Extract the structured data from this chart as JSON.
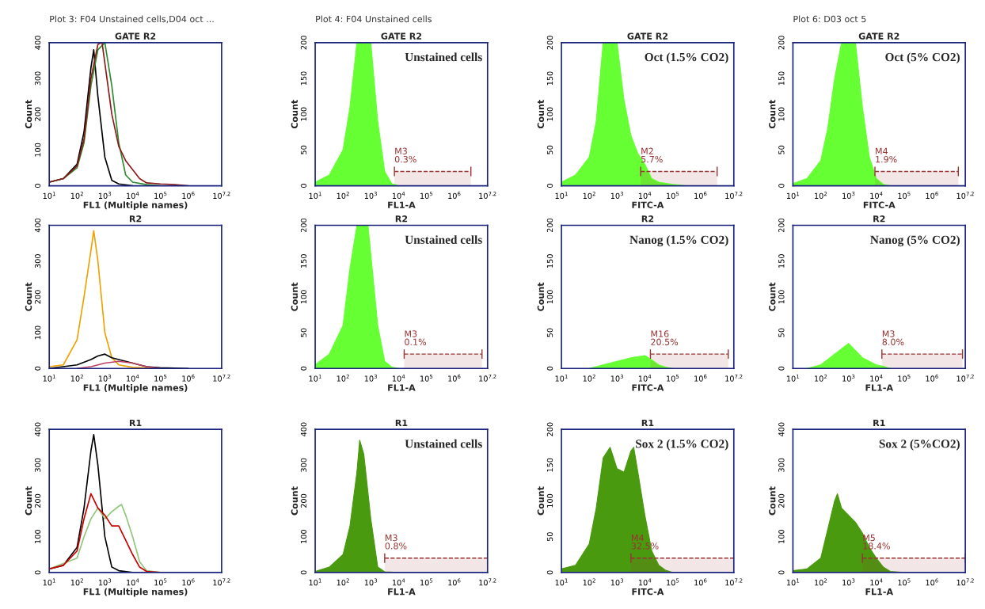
{
  "chart_data": [
    {
      "type": "line",
      "subtitle": "Plot 3: F04 Unstained cells,D04 oct ...",
      "title": "GATE R2",
      "xlabel": "FL1 (Multiple names)",
      "ylabel": "Count",
      "log": "x",
      "xlim": [
        10,
        15848932
      ],
      "ylim": [
        0,
        400
      ],
      "yticks": [
        0,
        100,
        200,
        300,
        400
      ],
      "xticks": [
        {
          "value": 10,
          "label": "10$^{1}$"
        },
        {
          "value": 100,
          "label": "10$^{2}$"
        },
        {
          "value": 1000,
          "label": "10$^{3}$"
        },
        {
          "value": 10000,
          "label": "10$^{4}$"
        },
        {
          "value": 100000,
          "label": "10$^{5}$"
        },
        {
          "value": 1000000,
          "label": "10$^{6}$"
        },
        {
          "value": 15848932,
          "label": "10$^{7.2}$"
        }
      ],
      "series": [
        {
          "color": "#000000",
          "x": [
            10,
            32,
            100,
            178,
            316,
            398,
            562,
            1000,
            1778,
            3162,
            10000
          ],
          "values": [
            10,
            20,
            60,
            150,
            330,
            380,
            250,
            80,
            15,
            5,
            0
          ]
        },
        {
          "color": "#2e8b2e",
          "x": [
            10,
            32,
            100,
            178,
            316,
            562,
            1000,
            1778,
            3162,
            5623,
            10000,
            31623,
            100000
          ],
          "values": [
            10,
            20,
            50,
            120,
            280,
            380,
            400,
            280,
            120,
            30,
            10,
            3,
            0
          ]
        },
        {
          "color": "#8b1a1a",
          "x": [
            10,
            32,
            100,
            178,
            316,
            562,
            794,
            1778,
            3162,
            5623,
            10000,
            17783,
            31623,
            100000,
            316228,
            1000000
          ],
          "values": [
            10,
            20,
            55,
            130,
            300,
            395,
            400,
            200,
            110,
            70,
            45,
            20,
            8,
            5,
            3,
            0
          ]
        }
      ]
    },
    {
      "type": "area",
      "subtitle": "Plot 4: F04 Unstained cells",
      "title": "GATE R2",
      "xlabel": "FL1-A",
      "ylabel": "Count",
      "log": "x",
      "xlim": [
        10,
        15848932
      ],
      "ylim": [
        0,
        200
      ],
      "yticks": [
        0,
        50,
        100,
        150,
        200
      ],
      "xticks": [
        {
          "value": 10,
          "label": "10$^{1}$"
        },
        {
          "value": 100,
          "label": "10$^{2}$"
        },
        {
          "value": 1000,
          "label": "10$^{3}$"
        },
        {
          "value": 10000,
          "label": "10$^{4}$"
        },
        {
          "value": 100000,
          "label": "10$^{5}$"
        },
        {
          "value": 1000000,
          "label": "10$^{6}$"
        },
        {
          "value": 15848932,
          "label": "10$^{7.2}$"
        }
      ],
      "annotations": [
        "Unstained cells"
      ],
      "bands": [
        {
          "axis": "x",
          "from": 7079,
          "to": 3981072,
          "label": "M3\n0.3%",
          "color": "#993333"
        }
      ],
      "series": [
        {
          "color": "#66ff33",
          "x": [
            10,
            32,
            100,
            178,
            316,
            1000,
            1778,
            3162,
            5623,
            10000
          ],
          "values": [
            5,
            15,
            50,
            110,
            200,
            200,
            90,
            20,
            3,
            0
          ]
        }
      ]
    },
    {
      "type": "area",
      "title": "GATE R2",
      "xlabel": "FITC-A",
      "ylabel": "Count",
      "log": "x",
      "xlim": [
        10,
        15848932
      ],
      "ylim": [
        0,
        200
      ],
      "yticks": [
        0,
        50,
        100,
        150,
        200
      ],
      "xticks": [
        {
          "value": 10,
          "label": "10$^{1}$"
        },
        {
          "value": 100,
          "label": "10$^{2}$"
        },
        {
          "value": 1000,
          "label": "10$^{3}$"
        },
        {
          "value": 10000,
          "label": "10$^{4}$"
        },
        {
          "value": 100000,
          "label": "10$^{5}$"
        },
        {
          "value": 1000000,
          "label": "10$^{6}$"
        },
        {
          "value": 15848932,
          "label": "10$^{7.2}$"
        }
      ],
      "annotations": [
        "Oct (1.5% CO2)"
      ],
      "bands": [
        {
          "axis": "x",
          "from": 7079,
          "to": 3981072,
          "label": "M2\n5.7%",
          "color": "#993333"
        }
      ],
      "series": [
        {
          "color": "#66ff33",
          "x": [
            10,
            32,
            100,
            178,
            316,
            1000,
            1778,
            3162,
            5623,
            10000,
            17783,
            31623,
            100000,
            316228
          ],
          "values": [
            5,
            15,
            40,
            90,
            200,
            200,
            120,
            70,
            45,
            30,
            10,
            5,
            2,
            0
          ]
        }
      ]
    },
    {
      "type": "area",
      "subtitle": "Plot 6: D03 oct 5",
      "title": "GATE R2",
      "xlabel": "FITC-A",
      "ylabel": "Count",
      "log": "x",
      "xlim": [
        10,
        15848932
      ],
      "ylim": [
        0,
        200
      ],
      "yticks": [
        0,
        50,
        100,
        150,
        200
      ],
      "xticks": [
        {
          "value": 10,
          "label": "10$^{1}$"
        },
        {
          "value": 100,
          "label": "10$^{2}$"
        },
        {
          "value": 1000,
          "label": "10$^{3}$"
        },
        {
          "value": 10000,
          "label": "10$^{4}$"
        },
        {
          "value": 100000,
          "label": "10$^{5}$"
        },
        {
          "value": 1000000,
          "label": "10$^{6}$"
        },
        {
          "value": 15848932,
          "label": "10$^{7.2}$"
        }
      ],
      "annotations": [
        "Oct (5% CO2)"
      ],
      "bands": [
        {
          "axis": "x",
          "from": 8913,
          "to": 8912509,
          "label": "M4\n1.9%",
          "color": "#993333"
        }
      ],
      "series": [
        {
          "color": "#66ff33",
          "x": [
            10,
            32,
            100,
            178,
            316,
            562,
            1778,
            3162,
            5623,
            10000,
            17783,
            31623
          ],
          "values": [
            3,
            10,
            35,
            80,
            150,
            200,
            200,
            110,
            40,
            10,
            2,
            0
          ]
        }
      ]
    },
    {
      "type": "line",
      "title": "R2",
      "xlabel": "FL1 (Multiple names)",
      "ylabel": "Count",
      "log": "x",
      "xlim": [
        10,
        15848932
      ],
      "ylim": [
        0,
        400
      ],
      "yticks": [
        0,
        100,
        200,
        300,
        400
      ],
      "xticks": [
        {
          "value": 10,
          "label": "10$^{1}$"
        },
        {
          "value": 100,
          "label": "10$^{2}$"
        },
        {
          "value": 1000,
          "label": "10$^{3}$"
        },
        {
          "value": 10000,
          "label": "10$^{4}$"
        },
        {
          "value": 100000,
          "label": "10$^{5}$"
        },
        {
          "value": 1000000,
          "label": "10$^{6}$"
        },
        {
          "value": 15848932,
          "label": "10$^{7.2}$"
        }
      ],
      "series": [
        {
          "color": "#f0a000",
          "x": [
            10,
            32,
            100,
            178,
            316,
            398,
            562,
            1000,
            1778,
            3162,
            10000,
            100000
          ],
          "values": [
            5,
            10,
            80,
            200,
            330,
            385,
            300,
            100,
            30,
            10,
            3,
            0
          ]
        },
        {
          "color": "#000000",
          "x": [
            10,
            100,
            316,
            562,
            1000,
            1778,
            3162,
            10000,
            31623,
            100000,
            1000000
          ],
          "values": [
            0,
            10,
            25,
            35,
            40,
            30,
            25,
            15,
            5,
            2,
            0
          ]
        },
        {
          "color": "#c04060",
          "x": [
            100,
            316,
            1000,
            3162,
            10000,
            31623,
            100000
          ],
          "values": [
            0,
            5,
            15,
            20,
            15,
            5,
            0
          ]
        }
      ]
    },
    {
      "type": "area",
      "title": "R2",
      "xlabel": "FL1-A",
      "ylabel": "Count",
      "log": "x",
      "xlim": [
        10,
        15848932
      ],
      "ylim": [
        0,
        200
      ],
      "yticks": [
        0,
        50,
        100,
        150,
        200
      ],
      "xticks": [
        {
          "value": 10,
          "label": "10$^{1}$"
        },
        {
          "value": 100,
          "label": "10$^{2}$"
        },
        {
          "value": 1000,
          "label": "10$^{3}$"
        },
        {
          "value": 10000,
          "label": "10$^{4}$"
        },
        {
          "value": 100000,
          "label": "10$^{5}$"
        },
        {
          "value": 1000000,
          "label": "10$^{6}$"
        },
        {
          "value": 15848932,
          "label": "10$^{7.2}$"
        }
      ],
      "annotations": [
        "Unstained cells"
      ],
      "bands": [
        {
          "axis": "x",
          "from": 15849,
          "to": 10000000,
          "label": "M3\n0.1%",
          "color": "#993333"
        }
      ],
      "series": [
        {
          "color": "#66ff33",
          "x": [
            10,
            32,
            100,
            178,
            316,
            794,
            1778,
            3162,
            5623,
            10000
          ],
          "values": [
            5,
            20,
            60,
            140,
            200,
            200,
            60,
            10,
            2,
            0
          ]
        }
      ]
    },
    {
      "type": "area",
      "title": "R2",
      "xlabel": "FITC-A",
      "ylabel": "Count",
      "log": "x",
      "xlim": [
        10,
        15848932
      ],
      "ylim": [
        0,
        200
      ],
      "yticks": [
        0,
        50,
        100,
        150,
        200
      ],
      "xticks": [
        {
          "value": 10,
          "label": "10$^{1}$"
        },
        {
          "value": 100,
          "label": "10$^{2}$"
        },
        {
          "value": 1000,
          "label": "10$^{3}$"
        },
        {
          "value": 10000,
          "label": "10$^{4}$"
        },
        {
          "value": 100000,
          "label": "10$^{5}$"
        },
        {
          "value": 1000000,
          "label": "10$^{6}$"
        },
        {
          "value": 15848932,
          "label": "10$^{7.2}$"
        }
      ],
      "annotations": [
        "Nanog (1.5% CO2)"
      ],
      "bands": [
        {
          "axis": "x",
          "from": 15849,
          "to": 10000000,
          "label": "M16\n20.5%",
          "color": "#993333"
        }
      ],
      "series": [
        {
          "color": "#66ff33",
          "x": [
            100,
            316,
            1000,
            3162,
            10000,
            17783,
            31623,
            56234,
            100000
          ],
          "values": [
            0,
            5,
            10,
            15,
            18,
            12,
            5,
            2,
            0
          ]
        }
      ]
    },
    {
      "type": "area",
      "title": "R2",
      "xlabel": "FL1-A",
      "ylabel": "Count",
      "log": "x",
      "xlim": [
        10,
        15848932
      ],
      "ylim": [
        0,
        200
      ],
      "yticks": [
        0,
        50,
        100,
        150,
        200
      ],
      "xticks": [
        {
          "value": 10,
          "label": "10$^{1}$"
        },
        {
          "value": 100,
          "label": "10$^{2}$"
        },
        {
          "value": 1000,
          "label": "10$^{3}$"
        },
        {
          "value": 10000,
          "label": "10$^{4}$"
        },
        {
          "value": 100000,
          "label": "10$^{5}$"
        },
        {
          "value": 1000000,
          "label": "10$^{6}$"
        },
        {
          "value": 15848932,
          "label": "10$^{7.2}$"
        }
      ],
      "annotations": [
        "Nanog (5% CO2)"
      ],
      "bands": [
        {
          "axis": "x",
          "from": 15849,
          "to": 12589254,
          "label": "M3\n8.0%",
          "color": "#993333"
        }
      ],
      "series": [
        {
          "color": "#66ff33",
          "x": [
            32,
            100,
            316,
            1000,
            1778,
            3162,
            10000,
            17783,
            31623
          ],
          "values": [
            0,
            5,
            20,
            35,
            25,
            15,
            5,
            3,
            0
          ]
        }
      ]
    },
    {
      "type": "line",
      "title": "R1",
      "xlabel": "FL1 (Multiple names)",
      "ylabel": "Count",
      "log": "x",
      "xlim": [
        10,
        15848932
      ],
      "ylim": [
        0,
        400
      ],
      "yticks": [
        0,
        100,
        200,
        300,
        400
      ],
      "xticks": [
        {
          "value": 10,
          "label": "10$^{1}$"
        },
        {
          "value": 100,
          "label": "10$^{2}$"
        },
        {
          "value": 1000,
          "label": "10$^{3}$"
        },
        {
          "value": 10000,
          "label": "10$^{4}$"
        },
        {
          "value": 100000,
          "label": "10$^{5}$"
        },
        {
          "value": 1000000,
          "label": "10$^{6}$"
        },
        {
          "value": 15848932,
          "label": "10$^{7.2}$"
        }
      ],
      "series": [
        {
          "color": "#000000",
          "x": [
            10,
            32,
            100,
            178,
            316,
            398,
            562,
            1000,
            1778,
            3162,
            10000
          ],
          "values": [
            10,
            20,
            70,
            180,
            340,
            385,
            300,
            100,
            15,
            5,
            0
          ]
        },
        {
          "color": "#8fc77a",
          "x": [
            10,
            100,
            178,
            316,
            562,
            1000,
            1778,
            3162,
            3981,
            5623,
            10000,
            17783,
            31623,
            100000
          ],
          "values": [
            10,
            40,
            100,
            150,
            180,
            150,
            170,
            185,
            190,
            160,
            100,
            30,
            5,
            0
          ]
        },
        {
          "color": "#cc0000",
          "x": [
            10,
            32,
            100,
            178,
            316,
            562,
            1000,
            1778,
            3162,
            5623,
            10000,
            17783,
            31623,
            100000
          ],
          "values": [
            10,
            20,
            60,
            150,
            220,
            180,
            160,
            130,
            130,
            90,
            50,
            15,
            3,
            0
          ]
        }
      ]
    },
    {
      "type": "area",
      "title": "R1",
      "xlabel": "FL1-A",
      "ylabel": "Count",
      "log": "x",
      "xlim": [
        10,
        15848932
      ],
      "ylim": [
        0,
        400
      ],
      "yticks": [
        0,
        100,
        200,
        300,
        400
      ],
      "xticks": [
        {
          "value": 10,
          "label": "10$^{1}$"
        },
        {
          "value": 100,
          "label": "10$^{2}$"
        },
        {
          "value": 1000,
          "label": "10$^{3}$"
        },
        {
          "value": 10000,
          "label": "10$^{4}$"
        },
        {
          "value": 100000,
          "label": "10$^{5}$"
        },
        {
          "value": 1000000,
          "label": "10$^{6}$"
        },
        {
          "value": 15848932,
          "label": "10$^{7.2}$"
        }
      ],
      "annotations": [
        "Unstained cells"
      ],
      "bands": [
        {
          "axis": "x",
          "from": 3162,
          "to": 15848932,
          "label": "M3\n0.8%",
          "color": "#993333"
        }
      ],
      "series": [
        {
          "color": "#4a9a10",
          "x": [
            10,
            32,
            100,
            178,
            316,
            398,
            562,
            1000,
            1778,
            3162,
            10000
          ],
          "values": [
            3,
            15,
            50,
            130,
            280,
            370,
            330,
            150,
            15,
            2,
            0
          ]
        }
      ]
    },
    {
      "type": "area",
      "title": "R1",
      "xlabel": "FITC-A",
      "ylabel": "Count",
      "log": "x",
      "xlim": [
        10,
        15848932
      ],
      "ylim": [
        0,
        200
      ],
      "yticks": [
        0,
        50,
        100,
        150,
        200
      ],
      "xticks": [
        {
          "value": 10,
          "label": "10$^{1}$"
        },
        {
          "value": 100,
          "label": "10$^{2}$"
        },
        {
          "value": 1000,
          "label": "10$^{3}$"
        },
        {
          "value": 10000,
          "label": "10$^{4}$"
        },
        {
          "value": 100000,
          "label": "10$^{5}$"
        },
        {
          "value": 1000000,
          "label": "10$^{6}$"
        },
        {
          "value": 15848932,
          "label": "10$^{7.2}$"
        }
      ],
      "annotations": [
        "Sox 2 (1.5% CO2)"
      ],
      "bands": [
        {
          "axis": "x",
          "from": 3162,
          "to": 15848932,
          "label": "M4\n32.5%",
          "color": "#993333"
        }
      ],
      "series": [
        {
          "color": "#4a9a10",
          "x": [
            10,
            32,
            100,
            178,
            316,
            562,
            1000,
            1778,
            3162,
            3981,
            5623,
            10000,
            17783,
            31623,
            56234,
            100000
          ],
          "values": [
            5,
            10,
            40,
            90,
            160,
            175,
            145,
            140,
            170,
            175,
            140,
            80,
            30,
            10,
            3,
            0
          ]
        }
      ]
    },
    {
      "type": "area",
      "title": "R1",
      "xlabel": "FL1-A",
      "ylabel": "Count",
      "log": "x",
      "xlim": [
        10,
        15848932
      ],
      "ylim": [
        0,
        400
      ],
      "yticks": [
        0,
        100,
        200,
        300,
        400
      ],
      "xticks": [
        {
          "value": 10,
          "label": "10$^{1}$"
        },
        {
          "value": 100,
          "label": "10$^{2}$"
        },
        {
          "value": 1000,
          "label": "10$^{3}$"
        },
        {
          "value": 10000,
          "label": "10$^{4}$"
        },
        {
          "value": 100000,
          "label": "10$^{5}$"
        },
        {
          "value": 1000000,
          "label": "10$^{6}$"
        },
        {
          "value": 15848932,
          "label": "10$^{7.2}$"
        }
      ],
      "annotations": [
        "Sox 2 (5%CO2)"
      ],
      "bands": [
        {
          "axis": "x",
          "from": 3162,
          "to": 15848932,
          "label": "M5\n18.4%",
          "color": "#993333"
        }
      ],
      "series": [
        {
          "color": "#4a9a10",
          "x": [
            10,
            32,
            100,
            178,
            316,
            398,
            562,
            1000,
            1778,
            3162,
            5623,
            10000,
            17783,
            31623,
            100000
          ],
          "values": [
            5,
            10,
            40,
            120,
            200,
            220,
            180,
            160,
            140,
            110,
            70,
            40,
            15,
            3,
            0
          ]
        }
      ]
    }
  ]
}
